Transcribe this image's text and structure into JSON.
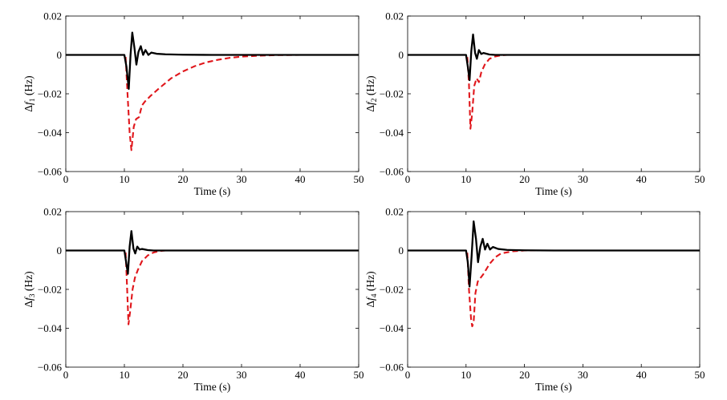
{
  "chart_data": [
    {
      "type": "line",
      "xlabel": "Time (s)",
      "ylabel": {
        "pre": "Δ",
        "var": "f",
        "sub": "1",
        "unit": " (Hz)"
      },
      "xlim": [
        0,
        50
      ],
      "ylim": [
        -0.06,
        0.02
      ],
      "xticks": [
        0,
        10,
        20,
        30,
        40,
        50
      ],
      "yticks": [
        -0.06,
        -0.04,
        -0.02,
        0,
        0.02
      ],
      "ytick_labels": [
        "−0.06",
        "−0.04",
        "−0.02",
        "0",
        "0.02"
      ],
      "series": [
        {
          "color": "#e0161b",
          "style": "dashed",
          "points": [
            [
              0,
              0
            ],
            [
              10.2,
              0
            ],
            [
              10.5,
              -0.018
            ],
            [
              10.9,
              -0.04
            ],
            [
              11.2,
              -0.049
            ],
            [
              11.6,
              -0.037
            ],
            [
              12,
              -0.033
            ],
            [
              12.5,
              -0.032
            ],
            [
              13,
              -0.026
            ],
            [
              13.5,
              -0.024
            ],
            [
              14.5,
              -0.021
            ],
            [
              16,
              -0.017
            ],
            [
              18,
              -0.012
            ],
            [
              20,
              -0.0085
            ],
            [
              22,
              -0.0058
            ],
            [
              24,
              -0.0038
            ],
            [
              26,
              -0.0025
            ],
            [
              28,
              -0.0015
            ],
            [
              30,
              -0.0009
            ],
            [
              33,
              -0.0004
            ],
            [
              36,
              -0.0001
            ],
            [
              40,
              0
            ],
            [
              50,
              0
            ]
          ]
        },
        {
          "color": "#000000",
          "style": "solid",
          "points": [
            [
              0,
              0
            ],
            [
              10,
              0
            ],
            [
              10.35,
              -0.006
            ],
            [
              10.75,
              -0.0175
            ],
            [
              11.05,
              0
            ],
            [
              11.35,
              0.0115
            ],
            [
              11.7,
              0.004
            ],
            [
              12.05,
              -0.005
            ],
            [
              12.4,
              0.0015
            ],
            [
              12.8,
              0.0045
            ],
            [
              13.2,
              0
            ],
            [
              13.6,
              0.0025
            ],
            [
              14.1,
              0
            ],
            [
              14.6,
              0.0012
            ],
            [
              15.5,
              0.0006
            ],
            [
              17,
              0.0003
            ],
            [
              20,
              0.0001
            ],
            [
              25,
              0
            ],
            [
              50,
              0
            ]
          ]
        }
      ]
    },
    {
      "type": "line",
      "xlabel": "Time (s)",
      "ylabel": {
        "pre": "Δ",
        "var": "f",
        "sub": "2",
        "unit": " (Hz)"
      },
      "xlim": [
        0,
        50
      ],
      "ylim": [
        -0.06,
        0.02
      ],
      "xticks": [
        0,
        10,
        20,
        30,
        40,
        50
      ],
      "yticks": [
        -0.06,
        -0.04,
        -0.02,
        0,
        0.02
      ],
      "ytick_labels": [
        "−0.06",
        "−0.04",
        "−0.02",
        "0",
        "0.02"
      ],
      "series": [
        {
          "color": "#e0161b",
          "style": "dashed",
          "points": [
            [
              0,
              0
            ],
            [
              10.2,
              0
            ],
            [
              10.5,
              -0.015
            ],
            [
              10.75,
              -0.038
            ],
            [
              11.05,
              -0.03
            ],
            [
              11.4,
              -0.016
            ],
            [
              11.8,
              -0.012
            ],
            [
              12.2,
              -0.014
            ],
            [
              12.6,
              -0.009
            ],
            [
              13.2,
              -0.005
            ],
            [
              14,
              -0.002
            ],
            [
              15,
              -0.0008
            ],
            [
              16,
              -0.0002
            ],
            [
              17,
              0
            ],
            [
              50,
              0
            ]
          ]
        },
        {
          "color": "#000000",
          "style": "solid",
          "points": [
            [
              0,
              0
            ],
            [
              10,
              0
            ],
            [
              10.3,
              -0.006
            ],
            [
              10.6,
              -0.013
            ],
            [
              10.9,
              0.002
            ],
            [
              11.2,
              0.0105
            ],
            [
              11.55,
              0.001
            ],
            [
              11.85,
              -0.002
            ],
            [
              12.2,
              0.0025
            ],
            [
              12.6,
              0.0005
            ],
            [
              13,
              0.001
            ],
            [
              14,
              0.0002
            ],
            [
              15,
              0
            ],
            [
              50,
              0
            ]
          ]
        }
      ]
    },
    {
      "type": "line",
      "xlabel": "Time (s)",
      "ylabel": {
        "pre": "Δ",
        "var": "f",
        "sub": "3",
        "unit": " (Hz)"
      },
      "xlim": [
        0,
        50
      ],
      "ylim": [
        -0.06,
        0.02
      ],
      "xticks": [
        0,
        10,
        20,
        30,
        40,
        50
      ],
      "yticks": [
        -0.06,
        -0.04,
        -0.02,
        0,
        0.02
      ],
      "ytick_labels": [
        "−0.06",
        "−0.04",
        "−0.02",
        "0",
        "0.02"
      ],
      "series": [
        {
          "color": "#e0161b",
          "style": "dashed",
          "points": [
            [
              0,
              0
            ],
            [
              10.2,
              0
            ],
            [
              10.45,
              -0.018
            ],
            [
              10.7,
              -0.038
            ],
            [
              11,
              -0.031
            ],
            [
              11.4,
              -0.02
            ],
            [
              11.8,
              -0.014
            ],
            [
              12.3,
              -0.01
            ],
            [
              13,
              -0.0055
            ],
            [
              14,
              -0.0025
            ],
            [
              15,
              -0.001
            ],
            [
              16,
              -0.0003
            ],
            [
              17,
              0
            ],
            [
              50,
              0
            ]
          ]
        },
        {
          "color": "#000000",
          "style": "solid",
          "points": [
            [
              0,
              0
            ],
            [
              10,
              0
            ],
            [
              10.3,
              -0.006
            ],
            [
              10.6,
              -0.012
            ],
            [
              10.9,
              0.002
            ],
            [
              11.2,
              0.01
            ],
            [
              11.55,
              0.001
            ],
            [
              11.85,
              -0.0015
            ],
            [
              12.2,
              0.002
            ],
            [
              12.6,
              0.0005
            ],
            [
              13,
              0.0008
            ],
            [
              14,
              0.0002
            ],
            [
              15,
              0
            ],
            [
              50,
              0
            ]
          ]
        }
      ]
    },
    {
      "type": "line",
      "xlabel": "Time (s)",
      "ylabel": {
        "pre": "Δ",
        "var": "f",
        "sub": "4",
        "unit": " (Hz)"
      },
      "xlim": [
        0,
        50
      ],
      "ylim": [
        -0.06,
        0.02
      ],
      "xticks": [
        0,
        10,
        20,
        30,
        40,
        50
      ],
      "yticks": [
        -0.06,
        -0.04,
        -0.02,
        0,
        0.02
      ],
      "ytick_labels": [
        "−0.06",
        "−0.04",
        "−0.02",
        "0",
        "0.02"
      ],
      "series": [
        {
          "color": "#e0161b",
          "style": "dashed",
          "points": [
            [
              0,
              0
            ],
            [
              10.2,
              0
            ],
            [
              10.5,
              -0.02
            ],
            [
              10.85,
              -0.035
            ],
            [
              11.05,
              -0.039
            ],
            [
              11.3,
              -0.037
            ],
            [
              11.6,
              -0.022
            ],
            [
              12,
              -0.016
            ],
            [
              12.5,
              -0.014
            ],
            [
              13,
              -0.012
            ],
            [
              14,
              -0.007
            ],
            [
              15,
              -0.0035
            ],
            [
              16,
              -0.0015
            ],
            [
              18,
              -0.0004
            ],
            [
              20,
              0
            ],
            [
              50,
              0
            ]
          ]
        },
        {
          "color": "#000000",
          "style": "solid",
          "points": [
            [
              0,
              0
            ],
            [
              10,
              0
            ],
            [
              10.3,
              -0.006
            ],
            [
              10.6,
              -0.0185
            ],
            [
              10.95,
              -0.003
            ],
            [
              11.3,
              0.015
            ],
            [
              11.7,
              0.006
            ],
            [
              12.05,
              -0.006
            ],
            [
              12.45,
              0.002
            ],
            [
              12.85,
              0.006
            ],
            [
              13.25,
              0.0005
            ],
            [
              13.65,
              0.0035
            ],
            [
              14.1,
              0.0005
            ],
            [
              14.6,
              0.0018
            ],
            [
              15.5,
              0.0008
            ],
            [
              17,
              0.0003
            ],
            [
              20,
              0.0001
            ],
            [
              25,
              0
            ],
            [
              50,
              0
            ]
          ]
        }
      ]
    }
  ]
}
